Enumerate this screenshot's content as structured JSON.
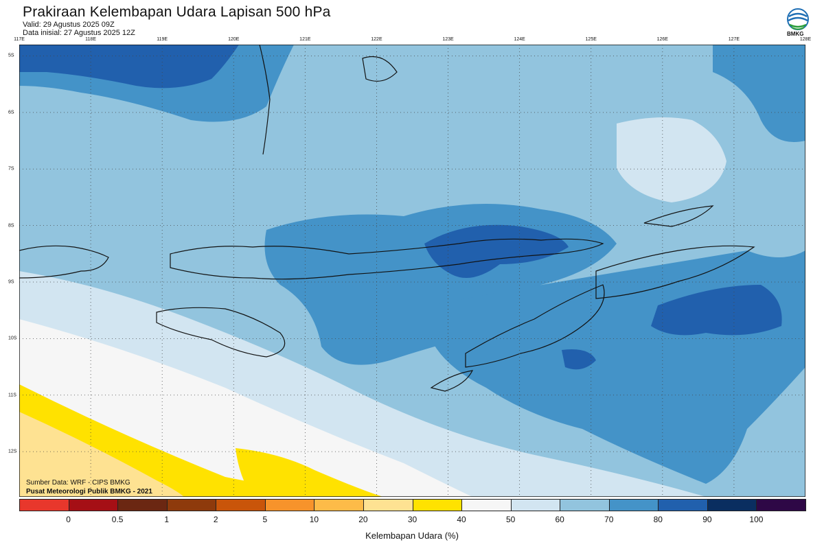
{
  "header": {
    "title": "Prakiraan Kelembapan Udara Lapisan 500 hPa",
    "valid": "Valid: 29 Agustus 2025 09Z",
    "initial": "Data inisial: 27 Agustus 2025 12Z"
  },
  "logo": {
    "text": "BMKG"
  },
  "axes": {
    "lon_labels": [
      "117E",
      "118E",
      "119E",
      "120E",
      "121E",
      "122E",
      "123E",
      "124E",
      "125E",
      "126E",
      "127E",
      "128E"
    ],
    "lat_labels": [
      "5S",
      "6S",
      "7S",
      "8S",
      "9S",
      "10S",
      "11S",
      "12S"
    ],
    "lon_range": [
      117,
      128
    ],
    "lat_range": [
      -4.8,
      -12.8
    ],
    "grid": "dotted"
  },
  "credits": {
    "source": "Sumber Data: WRF - CIPS BMKG",
    "publisher": "Pusat Meteorologi Publik BMKG - 2021"
  },
  "colorbar": {
    "title": "Kelembapan Udara (%)",
    "labels": [
      "0",
      "0.5",
      "1",
      "2",
      "5",
      "10",
      "20",
      "30",
      "40",
      "50",
      "60",
      "70",
      "80",
      "90",
      "100"
    ],
    "colors": [
      "#e8372c",
      "#a50f15",
      "#6b2712",
      "#8e3a0c",
      "#c9550a",
      "#f7932b",
      "#fdbb48",
      "#fee292",
      "#ffe200",
      "#f6f6f6",
      "#d2e5f1",
      "#92c4de",
      "#4493c8",
      "#2160ad",
      "#0a2e60",
      "#2e0846"
    ]
  },
  "colors": {
    "ocean_light": "#d2e5f1",
    "ocean_mid": "#92c4de",
    "ocean_dark": "#4493c8",
    "ocean_deep": "#2160ad",
    "dry_white": "#f6f6f6",
    "dry_yellow": "#ffe200",
    "dry_pale": "#fee292"
  }
}
